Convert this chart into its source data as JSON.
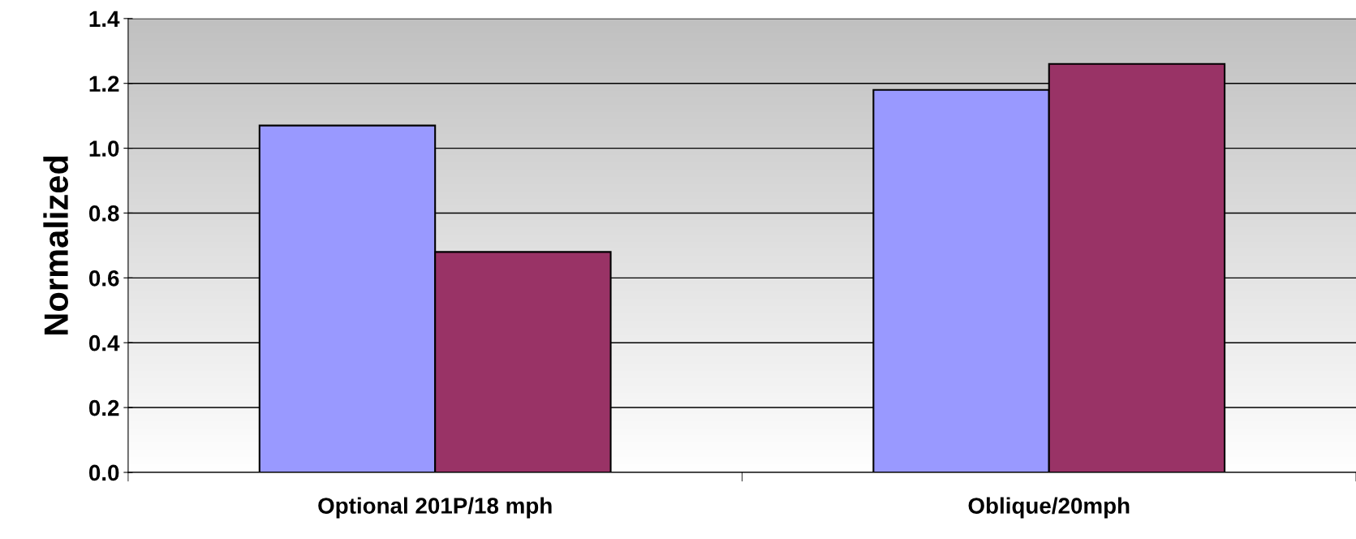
{
  "chart_data": {
    "type": "bar",
    "ylabel": "Normalized",
    "categories": [
      "Optional 201P/18 mph",
      "Oblique/20mph"
    ],
    "series": [
      {
        "color": "#9999ff",
        "values": [
          1.07,
          1.18
        ]
      },
      {
        "color": "#993366",
        "values": [
          0.68,
          1.26
        ]
      }
    ],
    "ylim": [
      0,
      1.4
    ],
    "yticks": [
      {
        "value": 0,
        "label": "0.0"
      },
      {
        "value": 0.2,
        "label": "0.2"
      },
      {
        "value": 0.4,
        "label": "0.4"
      },
      {
        "value": 0.6,
        "label": "0.6"
      },
      {
        "value": 0.8,
        "label": "0.8"
      },
      {
        "value": 1.0,
        "label": "1.0"
      },
      {
        "value": 1.2,
        "label": "1.2"
      },
      {
        "value": 1.4,
        "label": "1.4"
      }
    ],
    "grid": "y",
    "legend": false
  }
}
